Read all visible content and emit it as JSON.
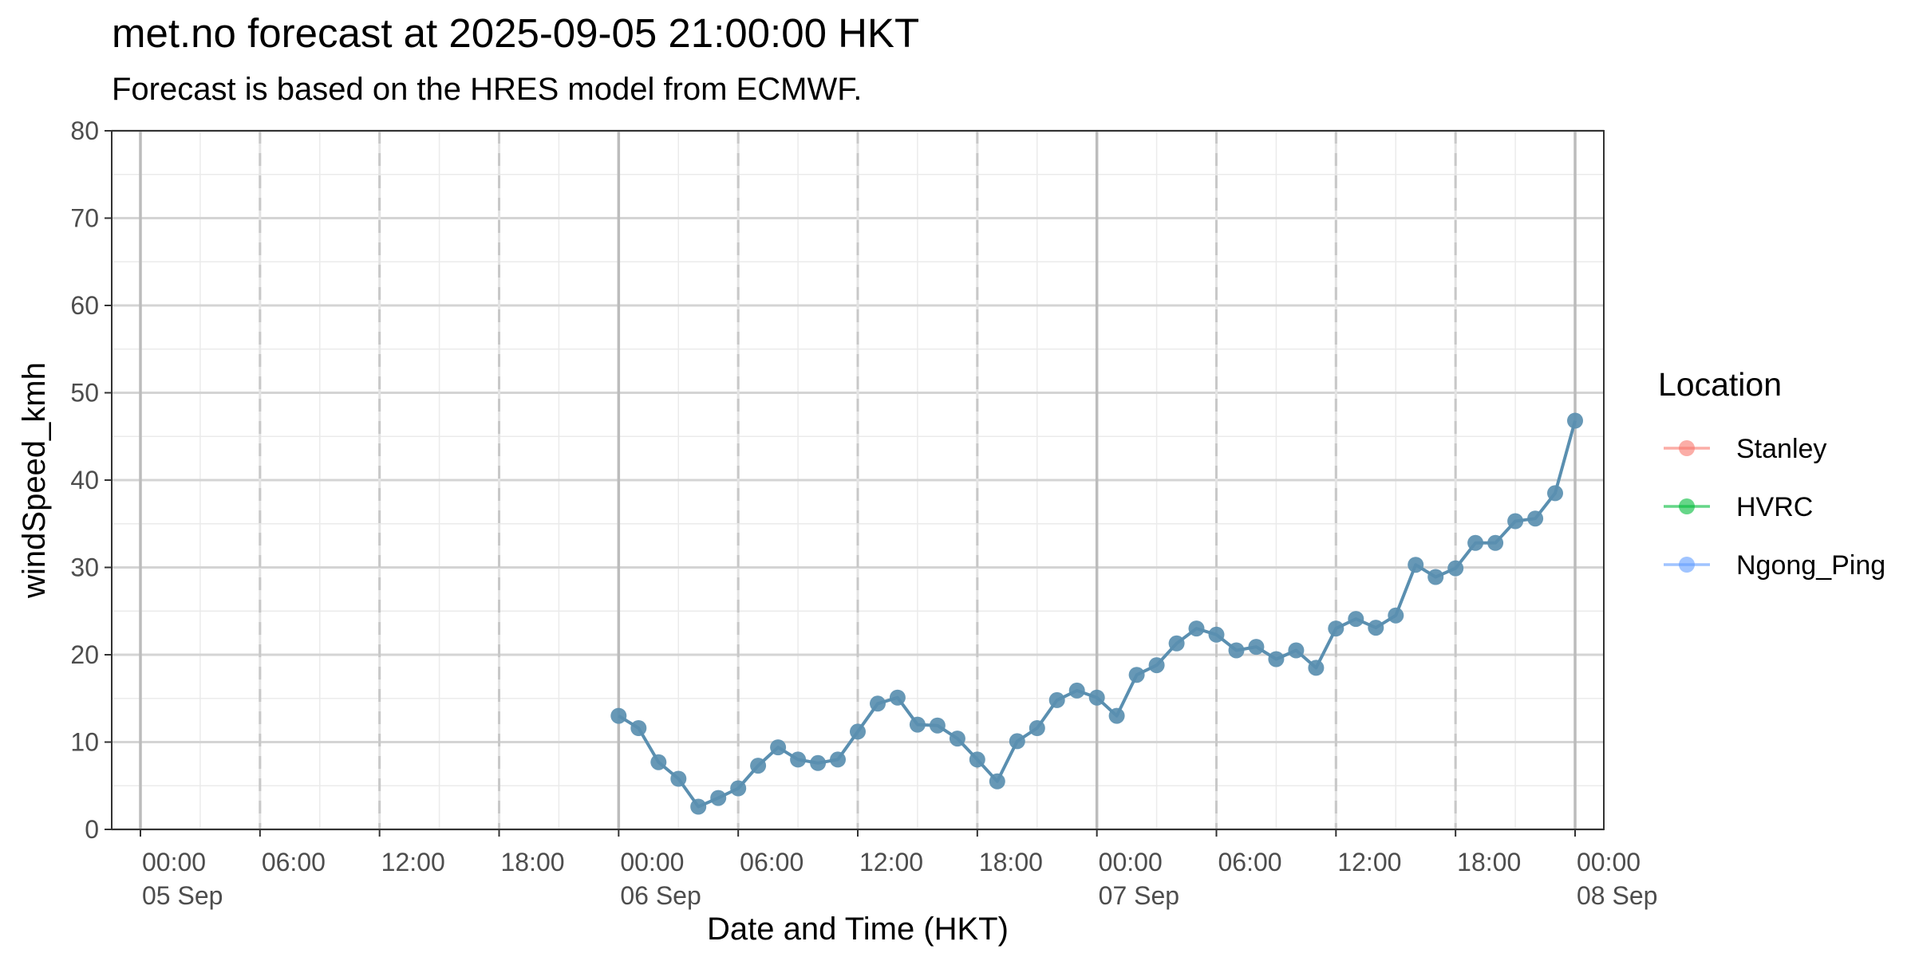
{
  "chart_data": {
    "type": "line",
    "title": "met.no forecast at 2025-09-05 21:00:00 HKT",
    "subtitle": "Forecast is based on the HRES model from ECMWF.",
    "xlabel": "Date and Time (HKT)",
    "ylabel": "windSpeed_kmh",
    "ylim": [
      0,
      80
    ],
    "xlim": [
      "2025-09-05 00:00",
      "2025-09-08 00:00"
    ],
    "y_ticks": [
      0,
      10,
      20,
      30,
      40,
      50,
      60,
      70,
      80
    ],
    "x_ticks": [
      {
        "t": "2025-09-05 00:00",
        "time": "00:00",
        "date": "05 Sep"
      },
      {
        "t": "2025-09-05 06:00",
        "time": "06:00",
        "date": ""
      },
      {
        "t": "2025-09-05 12:00",
        "time": "12:00",
        "date": ""
      },
      {
        "t": "2025-09-05 18:00",
        "time": "18:00",
        "date": ""
      },
      {
        "t": "2025-09-06 00:00",
        "time": "00:00",
        "date": "06 Sep"
      },
      {
        "t": "2025-09-06 06:00",
        "time": "06:00",
        "date": ""
      },
      {
        "t": "2025-09-06 12:00",
        "time": "12:00",
        "date": ""
      },
      {
        "t": "2025-09-06 18:00",
        "time": "18:00",
        "date": ""
      },
      {
        "t": "2025-09-07 00:00",
        "time": "00:00",
        "date": "07 Sep"
      },
      {
        "t": "2025-09-07 06:00",
        "time": "06:00",
        "date": ""
      },
      {
        "t": "2025-09-07 12:00",
        "time": "12:00",
        "date": ""
      },
      {
        "t": "2025-09-07 18:00",
        "time": "18:00",
        "date": ""
      },
      {
        "t": "2025-09-08 00:00",
        "time": "00:00",
        "date": "08 Sep"
      }
    ],
    "grid": true,
    "day_lines": [
      "2025-09-05 00:00",
      "2025-09-06 00:00",
      "2025-09-07 00:00",
      "2025-09-08 00:00"
    ],
    "dashed_lines": [
      "2025-09-05 06:00",
      "2025-09-05 12:00",
      "2025-09-05 18:00",
      "2025-09-06 06:00",
      "2025-09-06 12:00",
      "2025-09-06 18:00",
      "2025-09-07 06:00",
      "2025-09-07 12:00",
      "2025-09-07 18:00"
    ],
    "legend": {
      "title": "Location",
      "position": "right",
      "entries": [
        {
          "name": "Stanley",
          "color": "#F8766D"
        },
        {
          "name": "HVRC",
          "color": "#00BA38"
        },
        {
          "name": "Ngong_Ping",
          "color": "#619CFF"
        }
      ]
    },
    "x": [
      "2025-09-06 00:00",
      "2025-09-06 01:00",
      "2025-09-06 02:00",
      "2025-09-06 03:00",
      "2025-09-06 04:00",
      "2025-09-06 05:00",
      "2025-09-06 06:00",
      "2025-09-06 07:00",
      "2025-09-06 08:00",
      "2025-09-06 09:00",
      "2025-09-06 10:00",
      "2025-09-06 11:00",
      "2025-09-06 12:00",
      "2025-09-06 13:00",
      "2025-09-06 14:00",
      "2025-09-06 15:00",
      "2025-09-06 16:00",
      "2025-09-06 17:00",
      "2025-09-06 18:00",
      "2025-09-06 19:00",
      "2025-09-06 20:00",
      "2025-09-06 21:00",
      "2025-09-06 22:00",
      "2025-09-06 23:00",
      "2025-09-07 00:00",
      "2025-09-07 01:00",
      "2025-09-07 02:00",
      "2025-09-07 03:00",
      "2025-09-07 04:00",
      "2025-09-07 05:00",
      "2025-09-07 06:00",
      "2025-09-07 07:00",
      "2025-09-07 08:00",
      "2025-09-07 09:00",
      "2025-09-07 10:00",
      "2025-09-07 11:00",
      "2025-09-07 12:00",
      "2025-09-07 13:00",
      "2025-09-07 14:00",
      "2025-09-07 15:00",
      "2025-09-07 16:00",
      "2025-09-07 17:00",
      "2025-09-07 18:00",
      "2025-09-07 19:00",
      "2025-09-07 20:00",
      "2025-09-07 21:00",
      "2025-09-07 22:00",
      "2025-09-07 23:00",
      "2025-09-08 00:00"
    ],
    "series": [
      {
        "color": "#5A8FB0",
        "values": [
          13.0,
          11.6,
          7.7,
          5.8,
          2.6,
          3.6,
          4.7,
          7.3,
          9.4,
          8.0,
          7.6,
          8.0,
          11.2,
          14.4,
          15.1,
          12.0,
          11.9,
          10.4,
          8.0,
          5.5,
          10.1,
          11.6,
          14.8,
          15.9,
          15.1,
          13.0,
          17.7,
          18.8,
          21.3,
          23.0,
          22.3,
          20.5,
          20.9,
          19.5,
          20.5,
          18.5,
          23.0,
          24.1,
          23.1,
          24.5,
          30.3,
          28.9,
          29.9,
          32.8,
          32.8,
          35.3,
          35.6,
          38.5,
          46.8
        ]
      }
    ]
  }
}
